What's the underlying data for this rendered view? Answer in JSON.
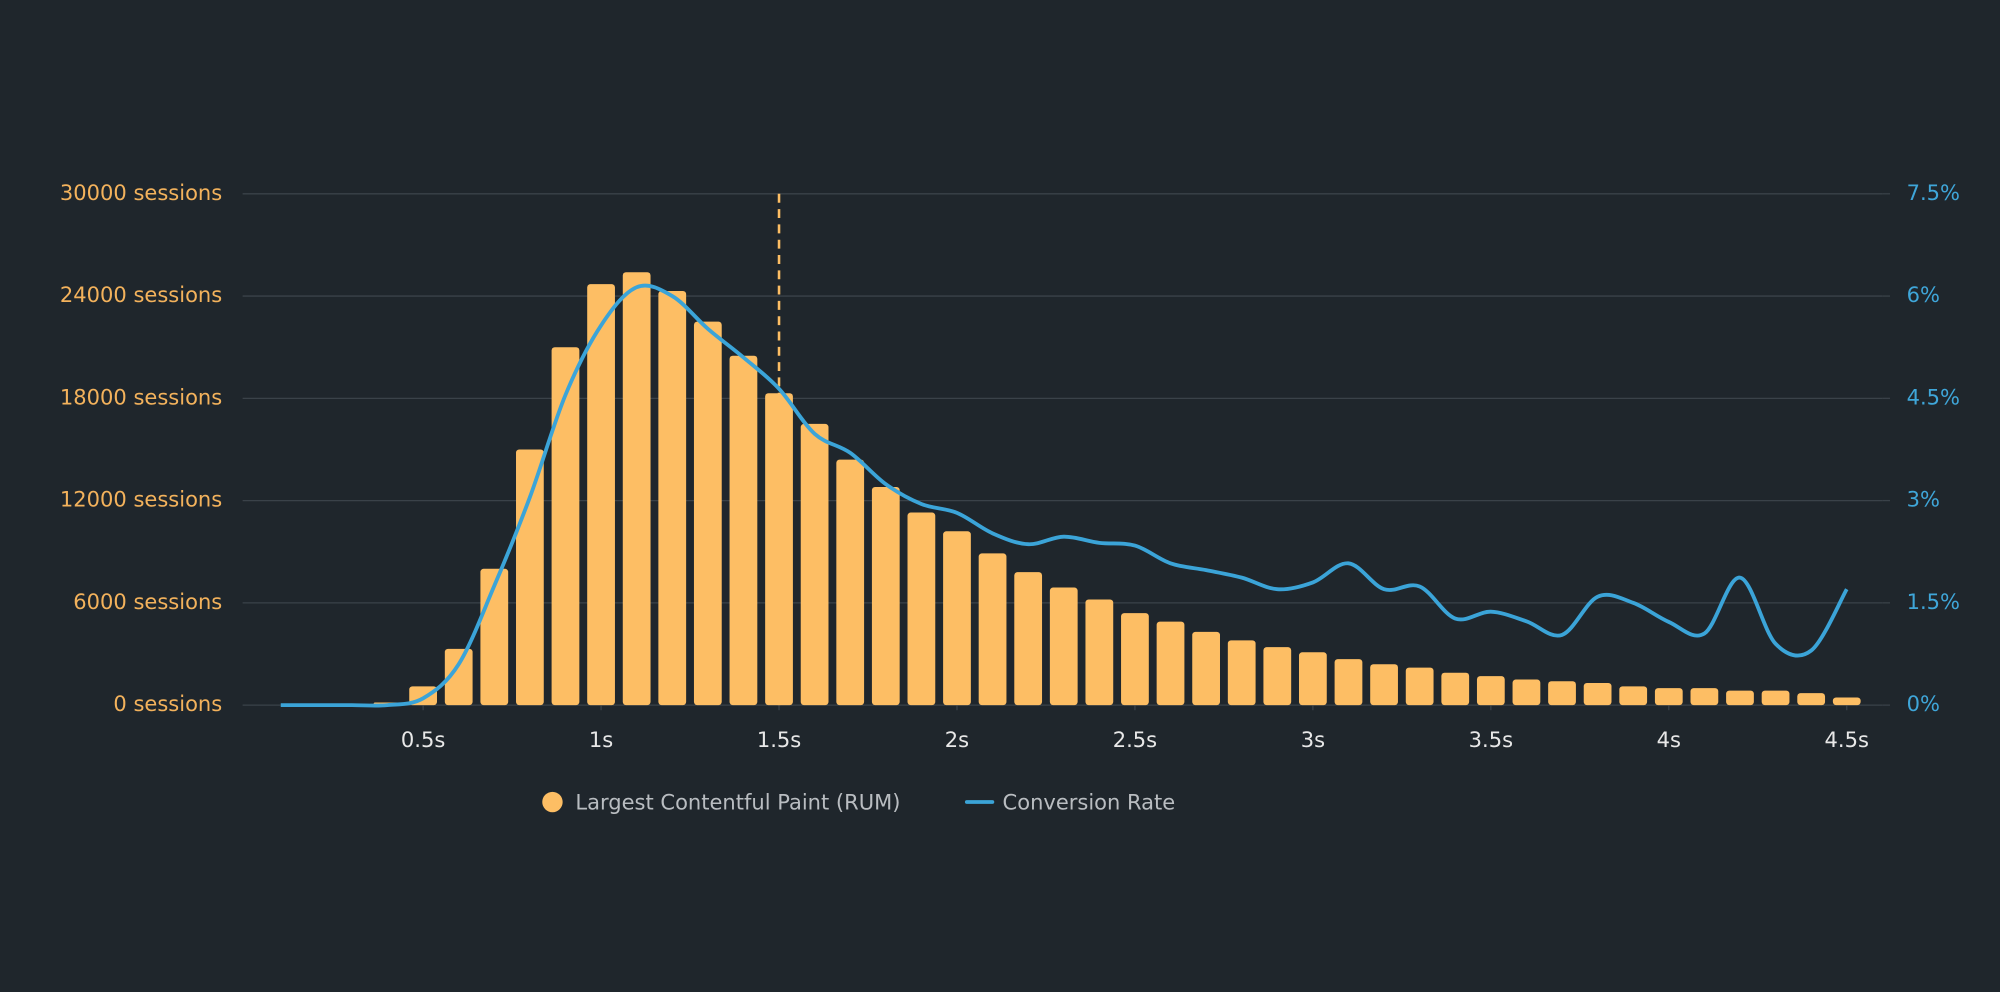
{
  "chart_data": {
    "type": "bar",
    "x": [
      0.1,
      0.2,
      0.3,
      0.4,
      0.5,
      0.6,
      0.7,
      0.8,
      0.9,
      1.0,
      1.1,
      1.2,
      1.3,
      1.4,
      1.5,
      1.6,
      1.7,
      1.8,
      1.9,
      2.0,
      2.1,
      2.2,
      2.3,
      2.4,
      2.5,
      2.6,
      2.7,
      2.8,
      2.9,
      3.0,
      3.1,
      3.2,
      3.3,
      3.4,
      3.5,
      3.6,
      3.7,
      3.8,
      3.9,
      4.0,
      4.1,
      4.2,
      4.3,
      4.4,
      4.5
    ],
    "series": [
      {
        "name": "Largest Contentful Paint (RUM)",
        "type": "bar",
        "color": "#fdbe64",
        "values": [
          null,
          null,
          null,
          150,
          1100,
          3300,
          8000,
          15000,
          21000,
          24700,
          25400,
          24300,
          22500,
          20500,
          18300,
          16500,
          14400,
          12800,
          11300,
          10200,
          8900,
          7800,
          6900,
          6200,
          5400,
          4900,
          4300,
          3800,
          3400,
          3100,
          2700,
          2400,
          2200,
          1900,
          1700,
          1500,
          1400,
          1300,
          1100,
          1000,
          1000,
          850,
          850,
          700,
          450
        ]
      },
      {
        "name": "Conversion Rate",
        "type": "line",
        "axis": "y2",
        "color": "#3ba4d8",
        "values": [
          0,
          0,
          0,
          0,
          0.1,
          0.6,
          1.75,
          3.05,
          4.55,
          5.57,
          6.13,
          6.0,
          5.52,
          5.1,
          4.64,
          3.98,
          3.7,
          3.24,
          2.95,
          2.82,
          2.52,
          2.36,
          2.47,
          2.38,
          2.34,
          2.08,
          1.98,
          1.87,
          1.7,
          1.8,
          2.08,
          1.7,
          1.74,
          1.27,
          1.37,
          1.23,
          1.03,
          1.59,
          1.5,
          1.22,
          1.05,
          1.87,
          0.9,
          0.8,
          1.7
        ]
      }
    ],
    "xlim": [
      0,
      4.6
    ],
    "xticks": [
      {
        "value": 0.5,
        "label": "0.5s"
      },
      {
        "value": 1,
        "label": "1s"
      },
      {
        "value": 1.5,
        "label": "1.5s"
      },
      {
        "value": 2,
        "label": "2s"
      },
      {
        "value": 2.5,
        "label": "2.5s"
      },
      {
        "value": 3,
        "label": "3s"
      },
      {
        "value": 3.5,
        "label": "3.5s"
      },
      {
        "value": 4,
        "label": "4s"
      },
      {
        "value": 4.5,
        "label": "4.5s"
      }
    ],
    "ylim": [
      0,
      30000
    ],
    "yticks": [
      {
        "value": 0,
        "label": "0 sessions"
      },
      {
        "value": 6000,
        "label": "6000 sessions"
      },
      {
        "value": 12000,
        "label": "12000 sessions"
      },
      {
        "value": 18000,
        "label": "18000 sessions"
      },
      {
        "value": 24000,
        "label": "24000 sessions"
      },
      {
        "value": 30000,
        "label": "30000 sessions"
      }
    ],
    "y2lim": [
      0,
      7.5
    ],
    "y2ticks": [
      {
        "value": 0,
        "label": "0%"
      },
      {
        "value": 1.5,
        "label": "1.5%"
      },
      {
        "value": 3,
        "label": "3%"
      },
      {
        "value": 4.5,
        "label": "4.5%"
      },
      {
        "value": 6,
        "label": "6%"
      },
      {
        "value": 7.5,
        "label": "7.5%"
      }
    ],
    "reference_line_x": 1.5,
    "grid": true,
    "legend": "bottom"
  }
}
